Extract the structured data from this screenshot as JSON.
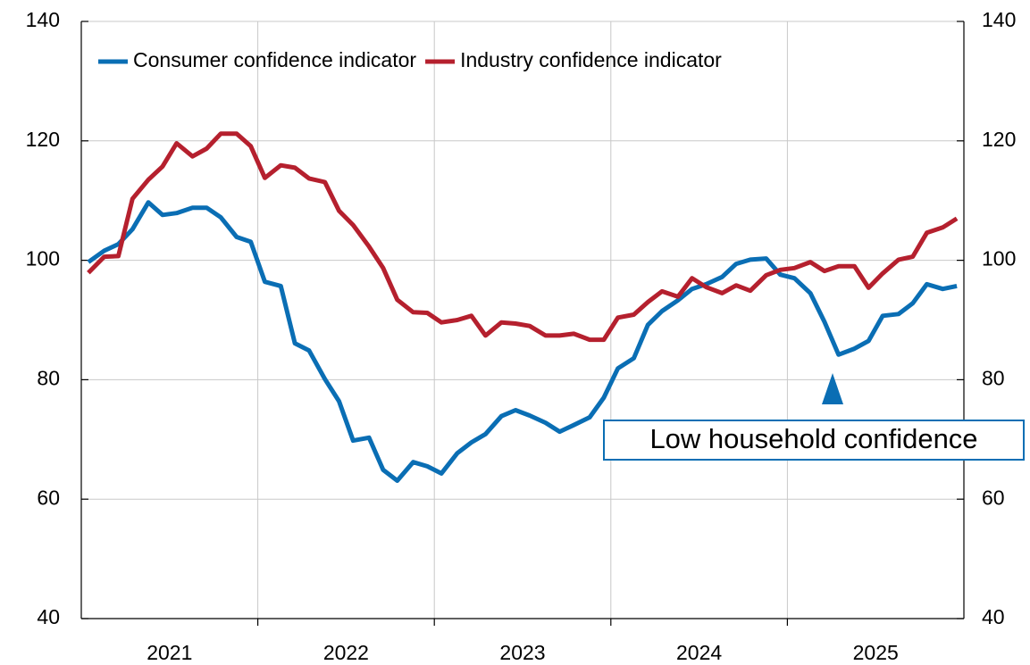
{
  "chart_data": {
    "type": "line",
    "x": [
      2021.04,
      2021.13,
      2021.21,
      2021.29,
      2021.38,
      2021.46,
      2021.54,
      2021.63,
      2021.71,
      2021.79,
      2021.88,
      2021.96,
      2022.04,
      2022.13,
      2022.21,
      2022.29,
      2022.38,
      2022.46,
      2022.54,
      2022.63,
      2022.71,
      2022.79,
      2022.88,
      2022.96,
      2023.04,
      2023.13,
      2023.21,
      2023.29,
      2023.38,
      2023.46,
      2023.54,
      2023.63,
      2023.71,
      2023.79,
      2023.88,
      2023.96,
      2024.04,
      2024.13,
      2024.21,
      2024.29,
      2024.38,
      2024.46,
      2024.54,
      2024.63,
      2024.71,
      2024.79,
      2024.88,
      2024.96,
      2025.04,
      2025.13,
      2025.21,
      2025.29,
      2025.38,
      2025.46,
      2025.54,
      2025.63,
      2025.71,
      2025.79,
      2025.88,
      2025.96
    ],
    "series": [
      {
        "name": "Consumer confidence indicator",
        "color": "#0a6eb4",
        "values": [
          99.7,
          101.6,
          102.7,
          105.2,
          109.7,
          107.6,
          107.9,
          108.8,
          108.8,
          107.2,
          103.9,
          103.1,
          96.4,
          95.7,
          86.1,
          84.9,
          80.1,
          76.4,
          69.8,
          70.3,
          64.9,
          63.1,
          66.2,
          65.5,
          64.3,
          67.7,
          69.5,
          70.9,
          73.9,
          74.9,
          74.0,
          72.8,
          71.3,
          72.4,
          73.7,
          77.0,
          81.9,
          83.6,
          89.2,
          91.5,
          93.3,
          95.2,
          96.0,
          97.2,
          99.4,
          100.1,
          100.3,
          97.6,
          97.0,
          94.5,
          89.7,
          84.2,
          85.2,
          86.5,
          90.7,
          91.0,
          92.8,
          96.0,
          95.2,
          95.7
        ]
      },
      {
        "name": "Industry confidence indicator",
        "color": "#b5202e",
        "values": [
          97.9,
          100.6,
          100.7,
          110.3,
          113.5,
          115.7,
          119.6,
          117.4,
          118.7,
          121.2,
          121.2,
          119.1,
          113.8,
          115.9,
          115.5,
          113.7,
          113.1,
          108.3,
          105.9,
          102.3,
          98.7,
          93.4,
          91.3,
          91.2,
          89.6,
          90.0,
          90.7,
          87.4,
          89.6,
          89.4,
          89.0,
          87.4,
          87.4,
          87.7,
          86.7,
          86.7,
          90.4,
          90.9,
          93.0,
          94.8,
          93.9,
          97.0,
          95.5,
          94.5,
          95.8,
          94.9,
          97.5,
          98.4,
          98.7,
          99.7,
          98.2,
          99.0,
          99.0,
          95.4,
          97.8,
          100.1,
          100.6,
          104.6,
          105.5,
          107.0
        ]
      }
    ],
    "xlim": [
      2021,
      2026
    ],
    "xticks": [
      {
        "value": 2021.5,
        "label": "2021"
      },
      {
        "value": 2022.5,
        "label": "2022"
      },
      {
        "value": 2023.5,
        "label": "2023"
      },
      {
        "value": 2024.5,
        "label": "2024"
      },
      {
        "value": 2025.5,
        "label": "2025"
      }
    ],
    "xgrid": [
      2022,
      2023,
      2024,
      2025
    ],
    "ylim": [
      40,
      140
    ],
    "yticks": [
      40,
      60,
      80,
      100,
      120,
      140
    ],
    "y2lim": [
      40,
      140
    ],
    "y2ticks": [
      40,
      60,
      80,
      100,
      120,
      140
    ],
    "grid": true,
    "legend": "top-left",
    "annotation": "Low household confidence"
  }
}
